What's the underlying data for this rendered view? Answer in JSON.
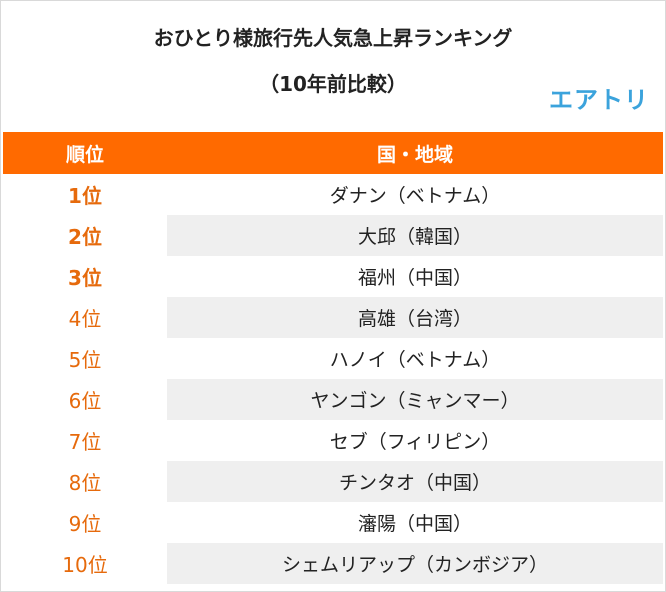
{
  "title": "おひとり様旅行先人気急上昇ランキング",
  "subtitle": "（10年前比較）",
  "logo": "エアトリ",
  "headers": {
    "rank": "順位",
    "region": "国・地域"
  },
  "rows": [
    {
      "rank": "1位",
      "region": "ダナン（ベトナム）"
    },
    {
      "rank": "2位",
      "region": "大邱（韓国）"
    },
    {
      "rank": "3位",
      "region": "福州（中国）"
    },
    {
      "rank": "4位",
      "region": "高雄（台湾）"
    },
    {
      "rank": "5位",
      "region": "ハノイ（ベトナム）"
    },
    {
      "rank": "6位",
      "region": "ヤンゴン（ミャンマー）"
    },
    {
      "rank": "7位",
      "region": "セブ（フィリピン）"
    },
    {
      "rank": "8位",
      "region": "チンタオ（中国）"
    },
    {
      "rank": "9位",
      "region": "瀋陽（中国）"
    },
    {
      "rank": "10位",
      "region": "シェムリアップ（カンボジア）"
    }
  ],
  "colors": {
    "accent": "#ff6a00",
    "rank_text": "#e66a0c",
    "logo": "#3ba3dc",
    "stripe": "#efefef"
  }
}
